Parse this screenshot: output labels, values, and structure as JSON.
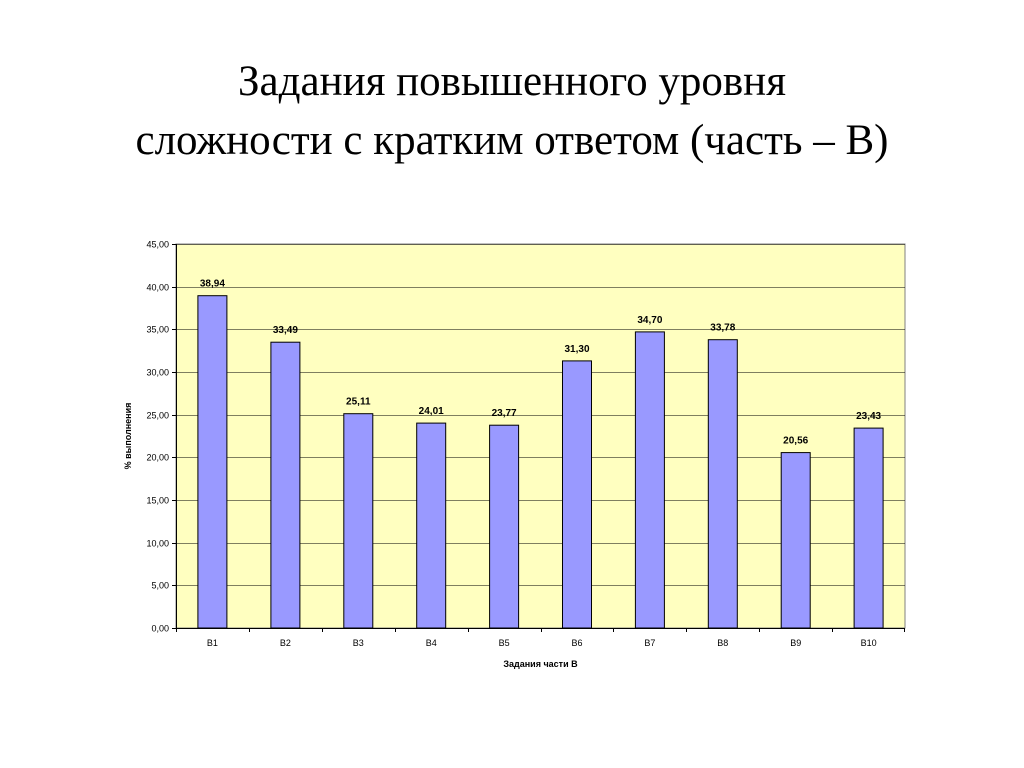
{
  "slide": {
    "title_line1": "Задания повышенного уровня",
    "title_line2": "сложности с кратким ответом (часть – В)"
  },
  "chart_data": {
    "type": "bar",
    "categories": [
      "В1",
      "В2",
      "В3",
      "В4",
      "В5",
      "В6",
      "В7",
      "В8",
      "В9",
      "В10"
    ],
    "values": [
      38.94,
      33.49,
      25.11,
      24.01,
      23.77,
      31.3,
      34.7,
      33.78,
      20.56,
      23.43
    ],
    "value_labels": [
      "38,94",
      "33,49",
      "25,11",
      "24,01",
      "23,77",
      "31,30",
      "34,70",
      "33,78",
      "20,56",
      "23,43"
    ],
    "title": "",
    "xlabel": "Задания части В",
    "ylabel": "% выполнения",
    "ylim": [
      0,
      45
    ],
    "yticks": [
      0,
      5,
      10,
      15,
      20,
      25,
      30,
      35,
      40,
      45
    ],
    "ytick_labels": [
      "0,00",
      "5,00",
      "10,00",
      "15,00",
      "20,00",
      "25,00",
      "30,00",
      "35,00",
      "40,00",
      "45,00"
    ],
    "grid": true,
    "legend": "none",
    "colors": {
      "plot_background": "#FFFFC0",
      "bar_fill": "#9999FF",
      "bar_stroke": "#000000",
      "gridline": "#000000"
    }
  }
}
